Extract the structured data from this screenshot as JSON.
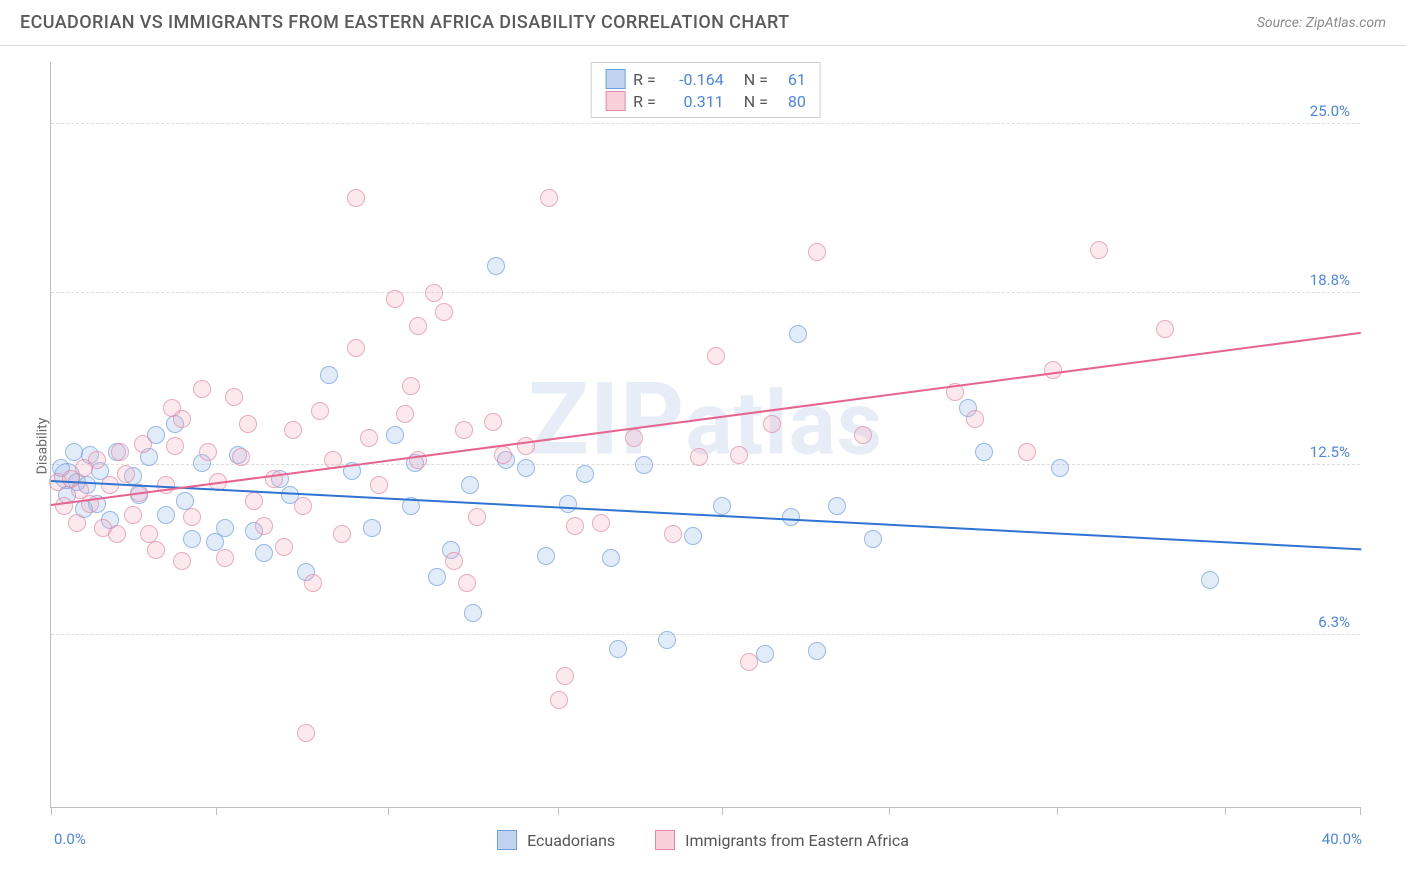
{
  "title": "ECUADORIAN VS IMMIGRANTS FROM EASTERN AFRICA DISABILITY CORRELATION CHART",
  "source": "Source: ZipAtlas.com",
  "watermark_text": "ZIPatlas",
  "chart": {
    "type": "scatter",
    "xlim": [
      0,
      40
    ],
    "ylim": [
      0,
      27.3
    ],
    "x_axis": {
      "label_min": "0.0%",
      "label_max": "40.0%",
      "tick_positions_pct": [
        0,
        12.6,
        25.7,
        38.7,
        51.2,
        64.0,
        76.8,
        89.6,
        99.9
      ],
      "label_color": "#4a86e8",
      "label_fontsize": 15
    },
    "y_axis": {
      "label": "Disability",
      "label_fontsize": 14,
      "label_color": "#6a6a6a",
      "gridlines": [
        {
          "value": 6.3,
          "label": "6.3%"
        },
        {
          "value": 12.5,
          "label": "12.5%"
        },
        {
          "value": 18.8,
          "label": "18.8%"
        },
        {
          "value": 25.0,
          "label": "25.0%"
        }
      ],
      "tick_label_color": "#4a86e8",
      "tick_label_fontsize": 15,
      "gridline_color": "#dcdcdc",
      "gridline_dash": true
    },
    "background_color": "#ffffff",
    "border_color": "#bdbdbd",
    "series": [
      {
        "name": "Ecuadorians",
        "color_fill": "rgba(140,177,229,0.35)",
        "color_stroke": "#6e9fe0",
        "marker": "circle",
        "marker_size": 18,
        "R": -0.164,
        "N": 61,
        "regression": {
          "x0": 0,
          "y0": 11.9,
          "x1": 40,
          "y1": 9.4,
          "color": "#2f74d0",
          "width": 2
        },
        "points": [
          [
            0.3,
            12.4
          ],
          [
            0.5,
            11.4
          ],
          [
            0.5,
            12.1,
            "big"
          ],
          [
            0.7,
            13.0
          ],
          [
            0.8,
            11.9
          ],
          [
            1.0,
            10.9
          ],
          [
            1.1,
            11.8
          ],
          [
            1.2,
            12.9
          ],
          [
            1.4,
            11.1
          ],
          [
            1.5,
            12.3
          ],
          [
            1.8,
            10.5
          ],
          [
            2.0,
            13.0
          ],
          [
            2.5,
            12.1
          ],
          [
            2.7,
            11.4
          ],
          [
            3.0,
            12.8
          ],
          [
            3.2,
            13.6
          ],
          [
            3.5,
            10.7
          ],
          [
            3.8,
            14.0
          ],
          [
            4.1,
            11.2
          ],
          [
            4.3,
            9.8
          ],
          [
            4.6,
            12.6
          ],
          [
            5.0,
            9.7
          ],
          [
            5.3,
            10.2
          ],
          [
            5.7,
            12.9
          ],
          [
            6.2,
            10.1
          ],
          [
            6.5,
            9.3
          ],
          [
            7.0,
            12.0
          ],
          [
            7.3,
            11.4
          ],
          [
            7.8,
            8.6
          ],
          [
            8.5,
            15.8
          ],
          [
            9.2,
            12.3
          ],
          [
            9.8,
            10.2
          ],
          [
            10.5,
            13.6
          ],
          [
            11.0,
            11.0
          ],
          [
            11.1,
            12.6
          ],
          [
            11.8,
            8.4
          ],
          [
            12.2,
            9.4
          ],
          [
            12.8,
            11.8
          ],
          [
            12.9,
            7.1
          ],
          [
            13.6,
            19.8
          ],
          [
            13.9,
            12.7
          ],
          [
            14.5,
            12.4
          ],
          [
            15.1,
            9.2
          ],
          [
            15.8,
            11.1
          ],
          [
            16.3,
            12.2
          ],
          [
            17.1,
            9.1
          ],
          [
            17.3,
            5.8
          ],
          [
            18.8,
            6.1
          ],
          [
            18.1,
            12.5
          ],
          [
            19.6,
            9.9
          ],
          [
            20.5,
            11.0
          ],
          [
            21.8,
            5.6
          ],
          [
            22.6,
            10.6
          ],
          [
            22.8,
            17.3
          ],
          [
            23.4,
            5.7
          ],
          [
            24.0,
            11.0
          ],
          [
            25.1,
            9.8
          ],
          [
            28.5,
            13.0
          ],
          [
            30.8,
            12.4
          ],
          [
            35.4,
            8.3
          ],
          [
            28.0,
            14.6
          ]
        ]
      },
      {
        "name": "Immigrants from Eastern Africa",
        "color_fill": "rgba(241,170,190,0.35)",
        "color_stroke": "#e58aa4",
        "marker": "circle",
        "marker_size": 18,
        "R": 0.311,
        "N": 80,
        "regression": {
          "x0": 0,
          "y0": 11.0,
          "x1": 40,
          "y1": 17.3,
          "color": "#e6648f",
          "width": 2
        },
        "points": [
          [
            0.2,
            11.9
          ],
          [
            0.4,
            11.0
          ],
          [
            0.6,
            12.0
          ],
          [
            0.8,
            10.4
          ],
          [
            0.9,
            11.6
          ],
          [
            1.0,
            12.4
          ],
          [
            1.2,
            11.1
          ],
          [
            1.4,
            12.7
          ],
          [
            1.6,
            10.2
          ],
          [
            1.8,
            11.8
          ],
          [
            2.0,
            10.0
          ],
          [
            2.1,
            13.0
          ],
          [
            2.3,
            12.2
          ],
          [
            2.5,
            10.7
          ],
          [
            2.7,
            11.5
          ],
          [
            2.8,
            13.3
          ],
          [
            3.0,
            10.0
          ],
          [
            3.2,
            9.4
          ],
          [
            3.5,
            11.8
          ],
          [
            3.7,
            14.6
          ],
          [
            3.8,
            13.2
          ],
          [
            4.0,
            9.0
          ],
          [
            4.0,
            14.2
          ],
          [
            4.3,
            10.6
          ],
          [
            4.6,
            15.3
          ],
          [
            4.8,
            13.0
          ],
          [
            5.1,
            11.9
          ],
          [
            5.3,
            9.1
          ],
          [
            5.6,
            15.0
          ],
          [
            5.8,
            12.8
          ],
          [
            6.0,
            14.0
          ],
          [
            6.2,
            11.2
          ],
          [
            6.5,
            10.3
          ],
          [
            6.8,
            12.0
          ],
          [
            7.1,
            9.5
          ],
          [
            7.4,
            13.8
          ],
          [
            7.7,
            11.0
          ],
          [
            7.8,
            2.7
          ],
          [
            8.0,
            8.2
          ],
          [
            8.2,
            14.5
          ],
          [
            8.6,
            12.7
          ],
          [
            8.9,
            10.0
          ],
          [
            9.3,
            16.8
          ],
          [
            9.7,
            13.5
          ],
          [
            9.3,
            22.3
          ],
          [
            10.0,
            11.8
          ],
          [
            10.5,
            18.6
          ],
          [
            10.8,
            14.4
          ],
          [
            11.0,
            15.4
          ],
          [
            11.2,
            12.7
          ],
          [
            11.2,
            17.6
          ],
          [
            11.7,
            18.8
          ],
          [
            12.0,
            18.1
          ],
          [
            12.3,
            9.0
          ],
          [
            12.6,
            13.8
          ],
          [
            12.7,
            8.2
          ],
          [
            13.0,
            10.6
          ],
          [
            13.5,
            14.1
          ],
          [
            13.8,
            12.9
          ],
          [
            14.5,
            13.2
          ],
          [
            15.2,
            22.3
          ],
          [
            15.5,
            3.9
          ],
          [
            15.7,
            4.8
          ],
          [
            16.0,
            10.3
          ],
          [
            16.8,
            10.4
          ],
          [
            17.8,
            13.5
          ],
          [
            19.0,
            10.0
          ],
          [
            19.8,
            12.8
          ],
          [
            20.3,
            16.5
          ],
          [
            21.0,
            12.9
          ],
          [
            21.3,
            5.3
          ],
          [
            23.4,
            20.3
          ],
          [
            22.0,
            14.0
          ],
          [
            24.8,
            13.6
          ],
          [
            28.2,
            14.2
          ],
          [
            30.6,
            16.0
          ],
          [
            32.0,
            20.4
          ],
          [
            27.6,
            15.2
          ],
          [
            29.8,
            13.0
          ],
          [
            34.0,
            17.5
          ]
        ]
      }
    ]
  },
  "legend_top": {
    "border_color": "#cfcfcf",
    "fontsize": 16,
    "rows": [
      {
        "swatch": "blue",
        "r_label": "R =",
        "r_value": "-0.164",
        "n_label": "N =",
        "n_value": "61"
      },
      {
        "swatch": "pink",
        "r_label": "R =",
        "r_value": "0.311",
        "n_label": "N =",
        "n_value": "80"
      }
    ],
    "value_color": "#4a86e8"
  },
  "legend_bottom": {
    "fontsize": 16,
    "items": [
      {
        "swatch": "blue",
        "label": "Ecuadorians"
      },
      {
        "swatch": "pink",
        "label": "Immigrants from Eastern Africa"
      }
    ]
  }
}
